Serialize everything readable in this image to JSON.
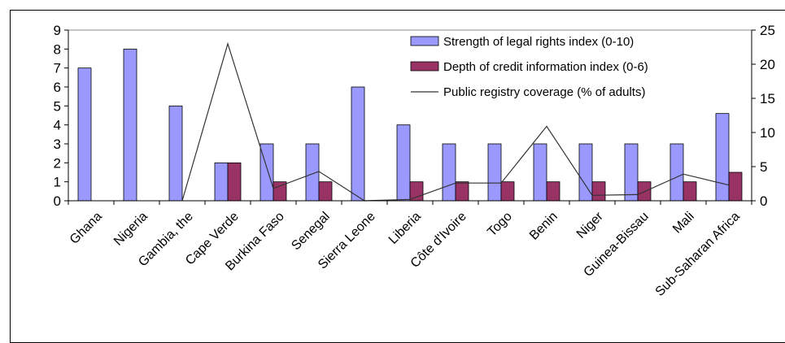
{
  "chart_data": {
    "type": "bar",
    "categories": [
      "Ghana",
      "Nigeria",
      "Gambia, the",
      "Cape Verde",
      "Burkina Faso",
      "Senegal",
      "Sierra Leone",
      "Liberia",
      "Côte d'Ivoire",
      "Togo",
      "Benin",
      "Niger",
      "Guinea-Bissau",
      "Mali",
      "Sub-Saharan Africa"
    ],
    "series": [
      {
        "name": "Strength of legal rights index (0-10)",
        "kind": "bar",
        "axis": "left",
        "color": "#9999ff",
        "values": [
          7,
          8,
          5,
          2,
          3,
          3,
          6,
          4,
          3,
          3,
          3,
          3,
          3,
          3,
          4.6
        ]
      },
      {
        "name": "Depth of credit information index (0-6)",
        "kind": "bar",
        "axis": "left",
        "color": "#993366",
        "values": [
          0,
          0,
          0,
          2,
          1,
          1,
          0,
          1,
          1,
          1,
          1,
          1,
          1,
          1,
          1.5
        ]
      },
      {
        "name": "Public registry coverage (% of adults)",
        "kind": "line",
        "axis": "right",
        "color": "#333333",
        "values": [
          null,
          null,
          0,
          23,
          1.8,
          4.3,
          0,
          0.2,
          2.6,
          2.6,
          10.9,
          0.8,
          0.9,
          3.9,
          2.3
        ]
      }
    ],
    "ylim_left": [
      0,
      9
    ],
    "yticks_left": [
      "0",
      "1",
      "2",
      "3",
      "4",
      "5",
      "6",
      "7",
      "8",
      "9"
    ],
    "ylim_right": [
      0,
      25
    ],
    "yticks_right": [
      "0",
      "5",
      "10",
      "15",
      "20",
      "25"
    ],
    "legend_position": "top-right",
    "grid": false
  }
}
